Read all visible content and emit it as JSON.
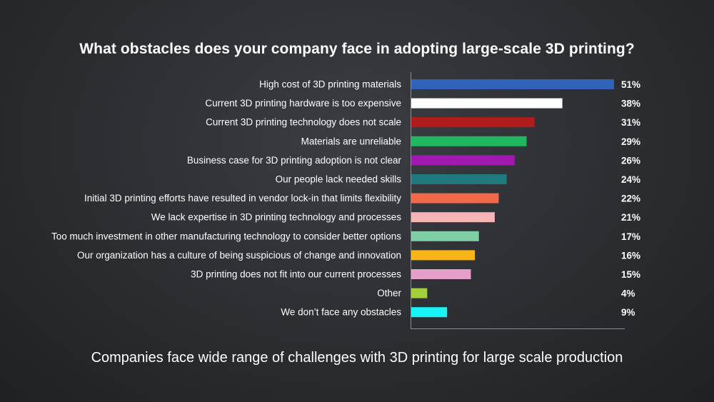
{
  "chart_data": {
    "type": "bar",
    "orientation": "horizontal",
    "title": "What obstacles does your company face in adopting large-scale 3D printing?",
    "subtitle": "Companies face wide range of challenges with 3D printing for large scale production",
    "categories": [
      "High cost of 3D printing materials",
      "Current 3D printing hardware is too expensive",
      "Current 3D printing technology does not scale",
      "Materials are unreliable",
      "Business case for 3D printing adoption is not clear",
      "Our people lack needed skills",
      "Initial 3D printing efforts have resulted in vendor lock-in that limits flexibility",
      "We lack expertise in 3D printing technology and processes",
      "Too much investment in other manufacturing technology to consider better options",
      "Our organization has a culture of being suspicious of change and innovation",
      "3D printing does not fit into our current processes",
      "Other",
      "We don’t face any obstacles"
    ],
    "values": [
      51,
      38,
      31,
      29,
      26,
      24,
      22,
      21,
      17,
      16,
      15,
      4,
      9
    ],
    "value_labels": [
      "51%",
      "38%",
      "31%",
      "29%",
      "26%",
      "24%",
      "22%",
      "21%",
      "17%",
      "16%",
      "15%",
      "4%",
      "9%"
    ],
    "colors": [
      "#2f62b8",
      "#ffffff",
      "#b01b1b",
      "#1fb85e",
      "#a11ab0",
      "#1e7a7c",
      "#f06a4a",
      "#f6b4b6",
      "#7fcfa6",
      "#f9b417",
      "#e4a0c8",
      "#a3cf3c",
      "#18f3f5"
    ],
    "xlim": [
      0,
      51
    ],
    "grid": false,
    "legend": "none"
  }
}
